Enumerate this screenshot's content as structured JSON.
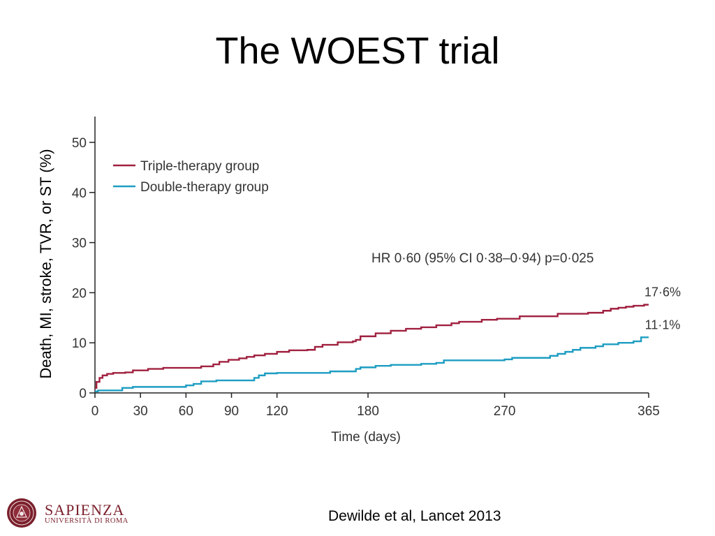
{
  "slide": {
    "title": "The WOEST trial",
    "citation": "Dewilde et al, Lancet 2013"
  },
  "logo": {
    "name": "SAPIENZA",
    "subtitle": "UNIVERSITÀ DI ROMA"
  },
  "chart_data": {
    "type": "line",
    "title": "",
    "xlabel": "Time (days)",
    "ylabel": "Death, MI, stroke, TVR, or ST (%)",
    "xlim": [
      0,
      365
    ],
    "ylim": [
      0,
      55
    ],
    "x_ticks": [
      "0",
      "30",
      "60",
      "90",
      "120",
      "180",
      "270",
      "365"
    ],
    "x_tick_values": [
      0,
      30,
      60,
      90,
      120,
      180,
      270,
      365
    ],
    "y_ticks": [
      "0",
      "10",
      "20",
      "30",
      "40",
      "50"
    ],
    "y_tick_values": [
      0,
      10,
      20,
      30,
      40,
      50
    ],
    "grid": false,
    "legend_position": "top-left",
    "annotation": "HR 0·60 (95% CI 0·38–0·94) p=0·025",
    "series": [
      {
        "name": "Triple-therapy group",
        "color": "#a0203f",
        "end_label": "17·6%",
        "x": [
          0,
          1,
          3,
          5,
          8,
          12,
          20,
          25,
          35,
          45,
          55,
          70,
          78,
          82,
          88,
          95,
          100,
          105,
          112,
          120,
          128,
          140,
          145,
          150,
          160,
          170,
          172,
          175,
          185,
          195,
          205,
          215,
          225,
          235,
          240,
          255,
          265,
          280,
          305,
          325,
          335,
          340,
          345,
          350,
          355,
          362,
          365
        ],
        "y": [
          1.0,
          2.2,
          3.0,
          3.5,
          3.8,
          4.0,
          4.1,
          4.5,
          4.8,
          5.0,
          5.0,
          5.3,
          5.7,
          6.2,
          6.6,
          6.9,
          7.2,
          7.5,
          7.8,
          8.2,
          8.5,
          8.6,
          9.2,
          9.6,
          10.1,
          10.3,
          10.6,
          11.3,
          11.9,
          12.4,
          12.8,
          13.1,
          13.5,
          13.9,
          14.2,
          14.6,
          14.8,
          15.3,
          15.8,
          16.0,
          16.4,
          16.8,
          17.0,
          17.2,
          17.4,
          17.6,
          17.6
        ]
      },
      {
        "name": "Double-therapy group",
        "color": "#1d9dc2",
        "end_label": "11·1%",
        "x": [
          0,
          2,
          15,
          18,
          25,
          35,
          45,
          55,
          60,
          65,
          70,
          80,
          100,
          105,
          108,
          112,
          120,
          135,
          155,
          170,
          172,
          175,
          185,
          195,
          215,
          225,
          230,
          240,
          255,
          270,
          275,
          285,
          300,
          305,
          310,
          315,
          320,
          330,
          335,
          345,
          350,
          355,
          360,
          365
        ],
        "y": [
          0.3,
          0.5,
          0.5,
          1.0,
          1.2,
          1.2,
          1.2,
          1.2,
          1.5,
          1.8,
          2.3,
          2.5,
          2.5,
          3.0,
          3.5,
          3.9,
          4.0,
          4.0,
          4.3,
          4.3,
          4.8,
          5.1,
          5.4,
          5.6,
          5.8,
          6.0,
          6.5,
          6.5,
          6.5,
          6.7,
          7.0,
          7.0,
          7.4,
          7.8,
          8.2,
          8.6,
          9.0,
          9.3,
          9.7,
          10.0,
          10.0,
          10.3,
          11.1,
          11.1
        ]
      }
    ]
  }
}
